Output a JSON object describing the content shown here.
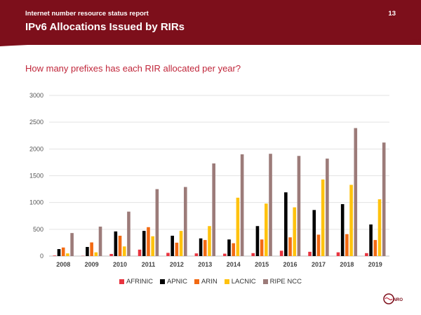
{
  "header": {
    "report_title": "Internet number resource status report",
    "page_number": "13",
    "slide_title": "IPv6 Allocations Issued by RIRs"
  },
  "question": "How many prefixes has each RIR allocated per year?",
  "logo": {
    "text": "NRO",
    "icon": "nro-logo-icon"
  },
  "colors": {
    "banner": "#7d0f1b",
    "accent": "#c0263a"
  },
  "chart_data": {
    "type": "bar",
    "categories": [
      "2008",
      "2009",
      "2010",
      "2011",
      "2012",
      "2013",
      "2014",
      "2015",
      "2016",
      "2017",
      "2018",
      "2019"
    ],
    "series": [
      {
        "name": "AFRINIC",
        "color": "#e8343f",
        "values": [
          10,
          5,
          40,
          120,
          60,
          50,
          45,
          55,
          100,
          80,
          70,
          55
        ]
      },
      {
        "name": "APNIC",
        "color": "#000000",
        "values": [
          130,
          170,
          460,
          470,
          380,
          330,
          310,
          560,
          1190,
          860,
          970,
          590
        ]
      },
      {
        "name": "ARIN",
        "color": "#f26a13",
        "values": [
          160,
          255,
          380,
          540,
          250,
          300,
          240,
          310,
          350,
          400,
          410,
          300
        ]
      },
      {
        "name": "LACNIC",
        "color": "#ffc20e",
        "values": [
          50,
          70,
          180,
          370,
          470,
          560,
          1090,
          980,
          910,
          1430,
          1330,
          1060
        ]
      },
      {
        "name": "RIPE NCC",
        "color": "#9c7b79",
        "values": [
          430,
          550,
          830,
          1250,
          1290,
          1730,
          1900,
          1910,
          1870,
          1820,
          2390,
          2120
        ]
      }
    ],
    "y_ticks": [
      "0",
      "500",
      "1000",
      "1500",
      "2000",
      "2500",
      "3000"
    ],
    "ylim": [
      0,
      3000
    ],
    "grid": true,
    "legend_position": "bottom"
  }
}
